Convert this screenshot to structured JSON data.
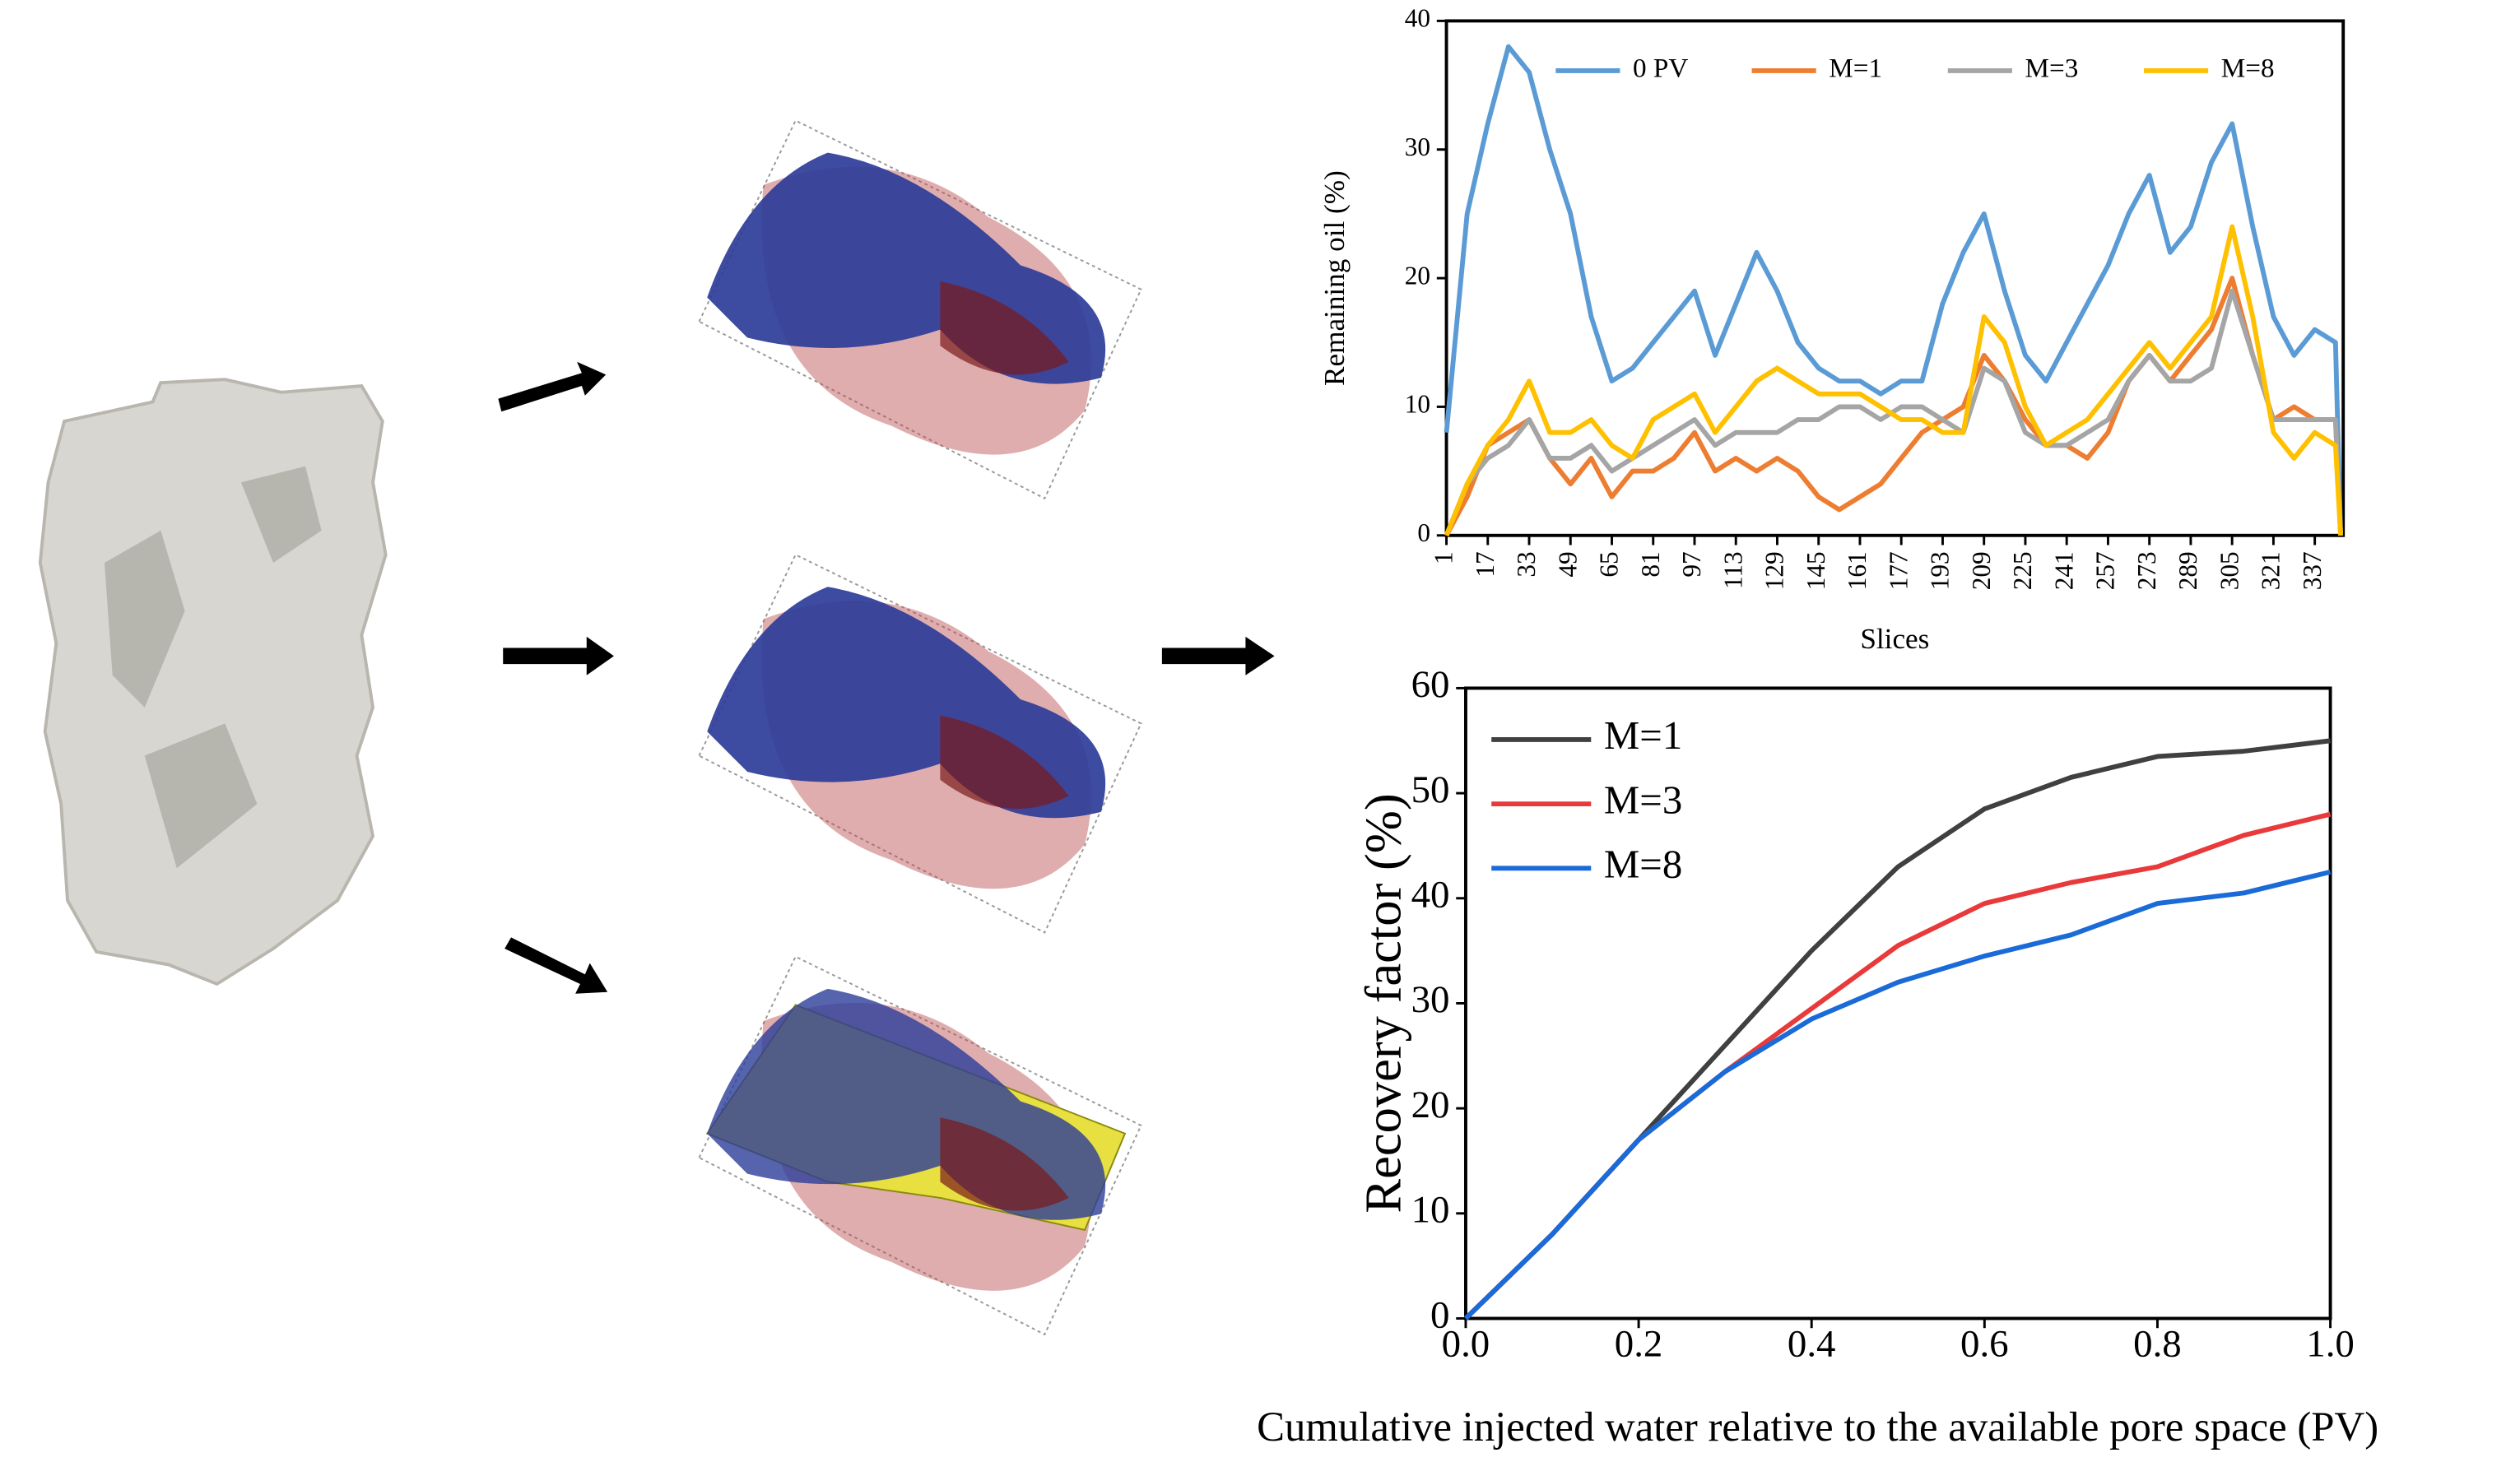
{
  "chart_data": [
    {
      "type": "line",
      "ylabel": "Remaining oil (%)",
      "xlabel": "Slices",
      "x": [
        1,
        9,
        17,
        25,
        33,
        41,
        49,
        57,
        65,
        73,
        81,
        89,
        97,
        105,
        113,
        121,
        129,
        137,
        145,
        153,
        161,
        169,
        177,
        185,
        193,
        201,
        209,
        217,
        225,
        233,
        241,
        249,
        257,
        265,
        273,
        281,
        289,
        297,
        305,
        313,
        321,
        329,
        337,
        345,
        347
      ],
      "series": [
        {
          "name": "0 PV",
          "color": "#5b9bd5",
          "values": [
            8,
            25,
            32,
            38,
            36,
            30,
            25,
            17,
            12,
            13,
            15,
            17,
            19,
            14,
            18,
            22,
            19,
            15,
            13,
            12,
            12,
            11,
            12,
            12,
            18,
            22,
            25,
            19,
            14,
            12,
            15,
            18,
            21,
            25,
            28,
            22,
            24,
            29,
            32,
            24,
            17,
            14,
            16,
            15,
            0
          ]
        },
        {
          "name": "M=1",
          "color": "#ed7d31",
          "values": [
            0,
            3,
            7,
            8,
            9,
            6,
            4,
            6,
            3,
            5,
            5,
            6,
            8,
            5,
            6,
            5,
            6,
            5,
            3,
            2,
            3,
            4,
            6,
            8,
            9,
            10,
            14,
            12,
            9,
            7,
            7,
            6,
            8,
            12,
            14,
            12,
            14,
            16,
            20,
            14,
            9,
            10,
            9,
            9,
            0
          ]
        },
        {
          "name": "M=3",
          "color": "#a5a5a5",
          "values": [
            0,
            4,
            6,
            7,
            9,
            6,
            6,
            7,
            5,
            6,
            7,
            8,
            9,
            7,
            8,
            8,
            8,
            9,
            9,
            10,
            10,
            9,
            10,
            10,
            9,
            8,
            13,
            12,
            8,
            7,
            7,
            8,
            9,
            12,
            14,
            12,
            12,
            13,
            19,
            14,
            9,
            9,
            9,
            9,
            0
          ]
        },
        {
          "name": "M=8",
          "color": "#ffc000",
          "values": [
            0,
            4,
            7,
            9,
            12,
            8,
            8,
            9,
            7,
            6,
            9,
            10,
            11,
            8,
            10,
            12,
            13,
            12,
            11,
            11,
            11,
            10,
            9,
            9,
            8,
            8,
            17,
            15,
            10,
            7,
            8,
            9,
            11,
            13,
            15,
            13,
            15,
            17,
            24,
            17,
            8,
            6,
            8,
            7,
            0
          ]
        }
      ],
      "xlim": [
        1,
        348
      ],
      "xticks": [
        1,
        17,
        33,
        49,
        65,
        81,
        97,
        113,
        129,
        145,
        161,
        177,
        193,
        209,
        225,
        241,
        257,
        273,
        289,
        305,
        321,
        337
      ],
      "ylim": [
        0,
        40
      ],
      "yticks": [
        0,
        10,
        20,
        30,
        40
      ],
      "legend": "top"
    },
    {
      "type": "line",
      "ylabel": "Recovery factor (%)",
      "xlabel": "Cumulative injected water relative to the available pore space (PV)",
      "x": [
        0,
        0.1,
        0.2,
        0.3,
        0.4,
        0.5,
        0.6,
        0.7,
        0.8,
        0.9,
        1.0
      ],
      "series": [
        {
          "name": "M=1",
          "color": "#404040",
          "values": [
            0,
            8,
            17,
            26,
            35,
            43,
            48.5,
            51.5,
            53.5,
            54,
            55
          ]
        },
        {
          "name": "M=3",
          "color": "#e83a3a",
          "values": [
            0,
            8,
            17,
            23.5,
            29.5,
            35.5,
            39.5,
            41.5,
            43,
            46,
            48
          ]
        },
        {
          "name": "M=8",
          "color": "#1a6ad8",
          "values": [
            0,
            8,
            17,
            23.5,
            28.5,
            32,
            34.5,
            36.5,
            39.5,
            40.5,
            42.5
          ]
        }
      ],
      "xlim": [
        0,
        1
      ],
      "xticks": [
        {
          "value": 0,
          "label": "0.0"
        },
        {
          "value": 0.2,
          "label": "0.2"
        },
        {
          "value": 0.4,
          "label": "0.4"
        },
        {
          "value": 0.6,
          "label": "0.6"
        },
        {
          "value": 0.8,
          "label": "0.8"
        },
        {
          "value": 1,
          "label": "1.0"
        }
      ],
      "ylim": [
        0,
        60
      ],
      "yticks": [
        0,
        10,
        20,
        30,
        40,
        50,
        60
      ],
      "legend": "upper left"
    }
  ]
}
